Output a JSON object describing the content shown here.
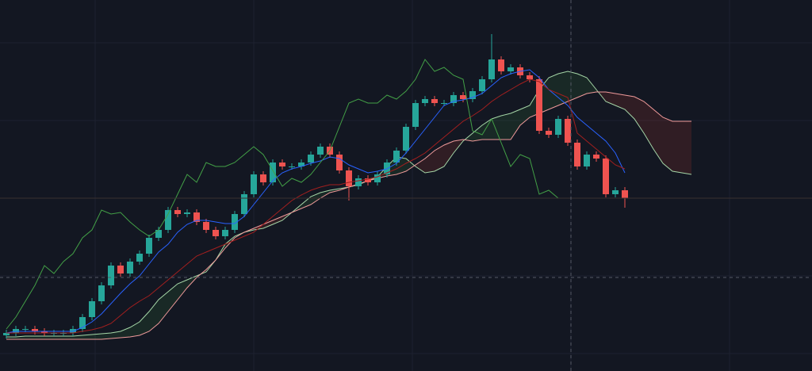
{
  "chart_data": {
    "type": "candlestick",
    "ylim": [
      0,
      468
    ],
    "up_color": "#26a69a",
    "down_color": "#ef5350",
    "open": [
      45,
      48,
      53,
      53,
      50,
      48,
      48,
      48,
      53,
      68,
      88,
      108,
      133,
      123,
      138,
      148,
      168,
      178,
      203,
      198,
      200,
      188,
      178,
      170,
      178,
      198,
      223,
      248,
      238,
      263,
      258,
      258,
      263,
      273,
      283,
      273,
      253,
      233,
      243,
      238,
      248,
      263,
      278,
      308,
      338,
      343,
      338,
      338,
      348,
      343,
      353,
      368,
      393,
      378,
      383,
      373,
      368,
      303,
      298,
      318,
      288,
      258,
      273,
      268,
      223,
      228
    ],
    "high": [
      52,
      57,
      57,
      57,
      54,
      52,
      52,
      57,
      72,
      92,
      112,
      137,
      137,
      142,
      152,
      172,
      182,
      207,
      207,
      204,
      204,
      192,
      182,
      182,
      202,
      227,
      252,
      252,
      267,
      267,
      262,
      267,
      277,
      287,
      287,
      277,
      257,
      247,
      247,
      252,
      267,
      282,
      312,
      342,
      347,
      347,
      342,
      352,
      352,
      357,
      372,
      425,
      397,
      387,
      387,
      377,
      372,
      307,
      322,
      322,
      292,
      277,
      277,
      272,
      232,
      232
    ],
    "low": [
      41,
      44,
      49,
      46,
      44,
      44,
      44,
      44,
      49,
      64,
      84,
      104,
      119,
      119,
      134,
      144,
      164,
      174,
      194,
      194,
      184,
      174,
      166,
      166,
      174,
      194,
      219,
      234,
      234,
      254,
      254,
      254,
      259,
      269,
      269,
      249,
      215,
      229,
      234,
      234,
      244,
      259,
      274,
      304,
      334,
      334,
      334,
      334,
      339,
      339,
      349,
      364,
      374,
      374,
      369,
      364,
      299,
      294,
      294,
      284,
      254,
      254,
      264,
      219,
      219,
      206
    ],
    "close": [
      48,
      53,
      53,
      50,
      48,
      48,
      48,
      53,
      68,
      88,
      108,
      133,
      123,
      138,
      148,
      168,
      178,
      203,
      198,
      200,
      188,
      178,
      170,
      178,
      198,
      223,
      248,
      238,
      263,
      258,
      258,
      263,
      273,
      283,
      273,
      253,
      233,
      243,
      238,
      248,
      263,
      278,
      308,
      338,
      343,
      338,
      338,
      348,
      343,
      353,
      368,
      393,
      378,
      383,
      373,
      368,
      303,
      298,
      318,
      288,
      258,
      273,
      268,
      223,
      228,
      218
    ],
    "lines": [
      {
        "color": "#2962ff",
        "values": [
          48,
          50,
          50,
          50,
          50,
          50,
          50,
          50,
          55,
          62,
          72,
          85,
          98,
          110,
          120,
          135,
          150,
          160,
          175,
          185,
          190,
          190,
          188,
          186,
          186,
          195,
          210,
          225,
          240,
          250,
          255,
          258,
          262,
          265,
          270,
          268,
          260,
          255,
          250,
          252,
          255,
          262,
          275,
          290,
          305,
          320,
          335,
          340,
          342,
          345,
          350,
          360,
          370,
          375,
          378,
          380,
          370,
          355,
          345,
          335,
          320,
          310,
          300,
          290,
          275,
          250
        ]
      },
      {
        "color": "#a31f1f",
        "values": [
          48,
          48,
          48,
          48,
          48,
          48,
          48,
          48,
          50,
          52,
          55,
          60,
          70,
          80,
          88,
          95,
          105,
          115,
          125,
          135,
          145,
          150,
          155,
          160,
          165,
          170,
          175,
          185,
          195,
          205,
          215,
          222,
          228,
          232,
          235,
          235,
          238,
          240,
          242,
          245,
          250,
          255,
          262,
          268,
          275,
          285,
          295,
          305,
          315,
          322,
          330,
          340,
          348,
          355,
          362,
          368,
          365,
          355,
          350,
          345,
          300,
          290,
          280,
          270,
          260,
          255
        ]
      },
      {
        "color": "#43a047",
        "values": [
          53,
          68,
          88,
          108,
          133,
          123,
          138,
          148,
          168,
          178,
          203,
          198,
          200,
          188,
          178,
          170,
          178,
          198,
          223,
          248,
          238,
          263,
          258,
          258,
          263,
          273,
          283,
          273,
          253,
          233,
          243,
          238,
          248,
          263,
          278,
          308,
          338,
          343,
          338,
          338,
          348,
          343,
          353,
          368,
          393,
          378,
          383,
          373,
          368,
          303,
          298,
          318,
          288,
          258,
          273,
          268,
          223,
          228,
          218
        ]
      }
    ],
    "span_a": {
      "color": "#a5d6a7",
      "values": [
        43,
        43,
        44,
        44,
        44,
        44,
        44,
        44,
        45,
        46,
        47,
        48,
        50,
        55,
        62,
        75,
        90,
        100,
        110,
        115,
        120,
        125,
        140,
        160,
        170,
        175,
        178,
        180,
        185,
        190,
        200,
        210,
        220,
        225,
        228,
        230,
        232,
        235,
        240,
        245,
        258,
        270,
        268,
        258,
        250,
        252,
        258,
        275,
        290,
        300,
        310,
        318,
        322,
        325,
        330,
        335,
        355,
        370,
        375,
        378,
        375,
        370,
        355,
        340,
        335,
        330,
        318,
        300,
        280,
        262,
        252,
        250,
        248
      ]
    },
    "span_b": {
      "color": "#ef9a9a",
      "values": [
        40,
        40,
        40,
        40,
        40,
        40,
        40,
        40,
        40,
        40,
        40,
        41,
        42,
        43,
        45,
        50,
        60,
        75,
        90,
        105,
        118,
        128,
        140,
        155,
        168,
        175,
        180,
        185,
        190,
        195,
        200,
        205,
        210,
        218,
        225,
        228,
        232,
        236,
        240,
        243,
        246,
        248,
        252,
        260,
        268,
        278,
        285,
        290,
        292,
        290,
        292,
        292,
        292,
        292,
        310,
        320,
        325,
        330,
        335,
        340,
        345,
        350,
        352,
        352,
        350,
        348,
        346,
        340,
        330,
        320,
        315,
        315,
        315
      ]
    },
    "cloud_up_color": "rgba(67,160,71,0.13)",
    "cloud_down_color": "rgba(244,67,54,0.13)"
  }
}
